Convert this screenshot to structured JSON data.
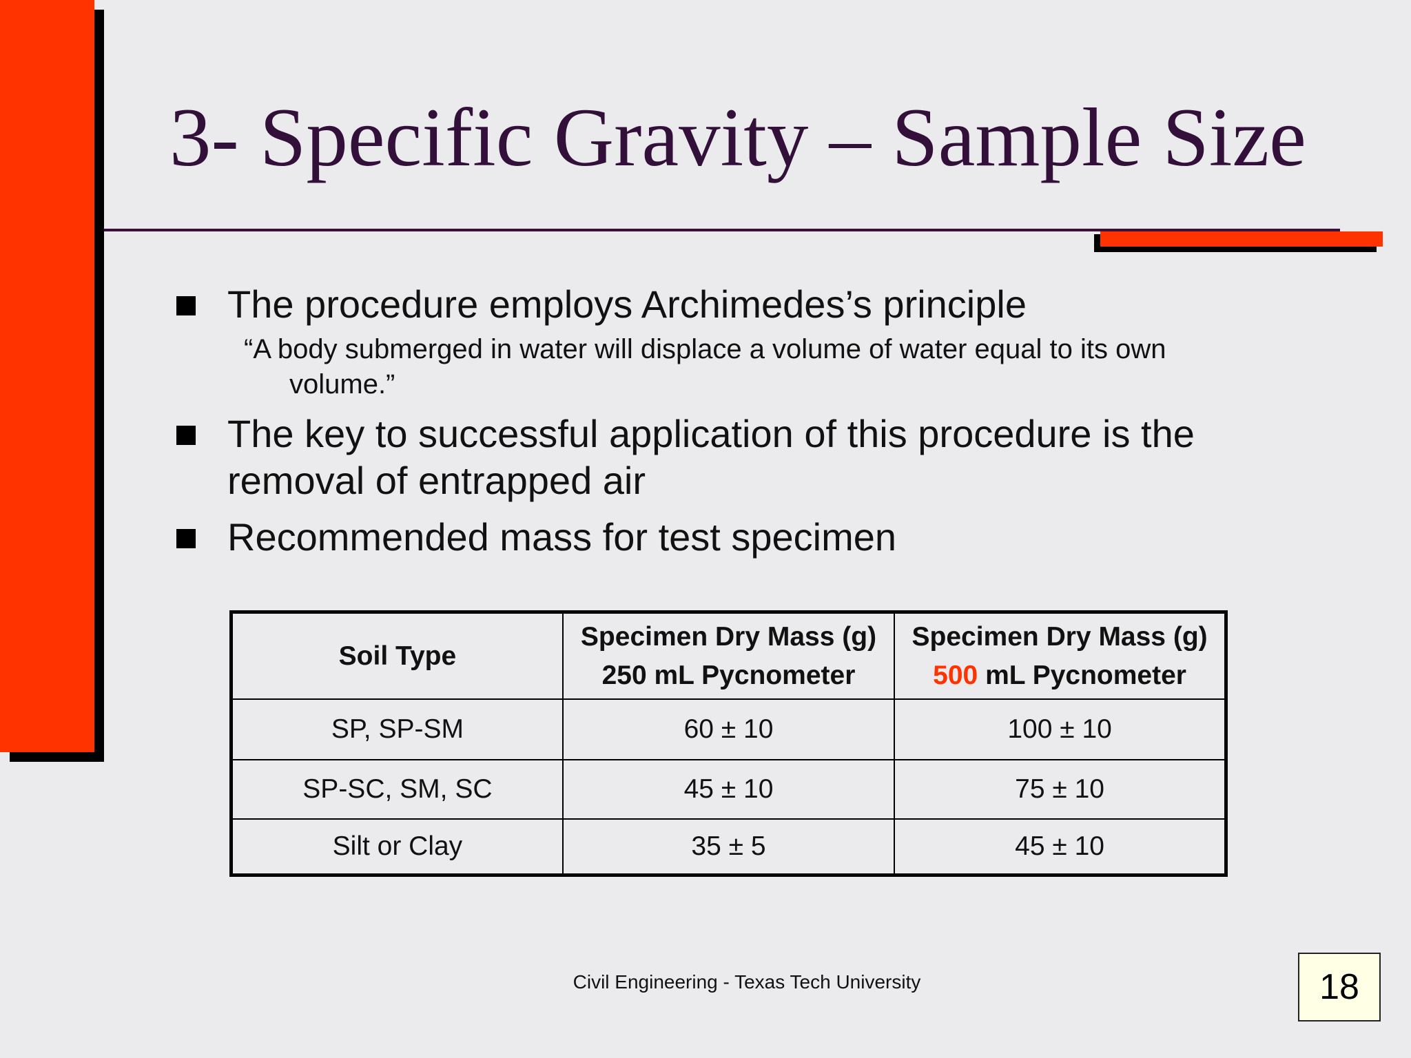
{
  "colors": {
    "background": "#ebebed",
    "accent": "#ff3300",
    "title": "#33103a",
    "rule": "#3a0f3c",
    "page_box": "#ffffe6"
  },
  "slide": {
    "title": "3- Specific Gravity – Sample Size",
    "bullets": [
      "The procedure employs Archimedes’s principle",
      "The key to successful application of this procedure is the removal of entrapped air",
      "Recommended mass for test specimen"
    ],
    "sub_quote": "“A body submerged in water will displace a volume of water equal to its own volume.”"
  },
  "table": {
    "headers": {
      "col1": "Soil Type",
      "col2_line1": "Specimen Dry Mass (g)",
      "col2_line2": "250 mL Pycnometer",
      "col3_line1": "Specimen Dry Mass (g)",
      "col3_line2_highlight": "500",
      "col3_line2_rest": " mL Pycnometer"
    },
    "rows": [
      [
        "SP, SP-SM",
        "60 ± 10",
        "100 ± 10"
      ],
      [
        "SP-SC, SM, SC",
        "45 ± 10",
        "75 ± 10"
      ],
      [
        "Silt or Clay",
        "35 ± 5",
        "45 ± 10"
      ]
    ]
  },
  "footer": {
    "text": "Civil Engineering - Texas Tech University",
    "page_number": "18"
  }
}
